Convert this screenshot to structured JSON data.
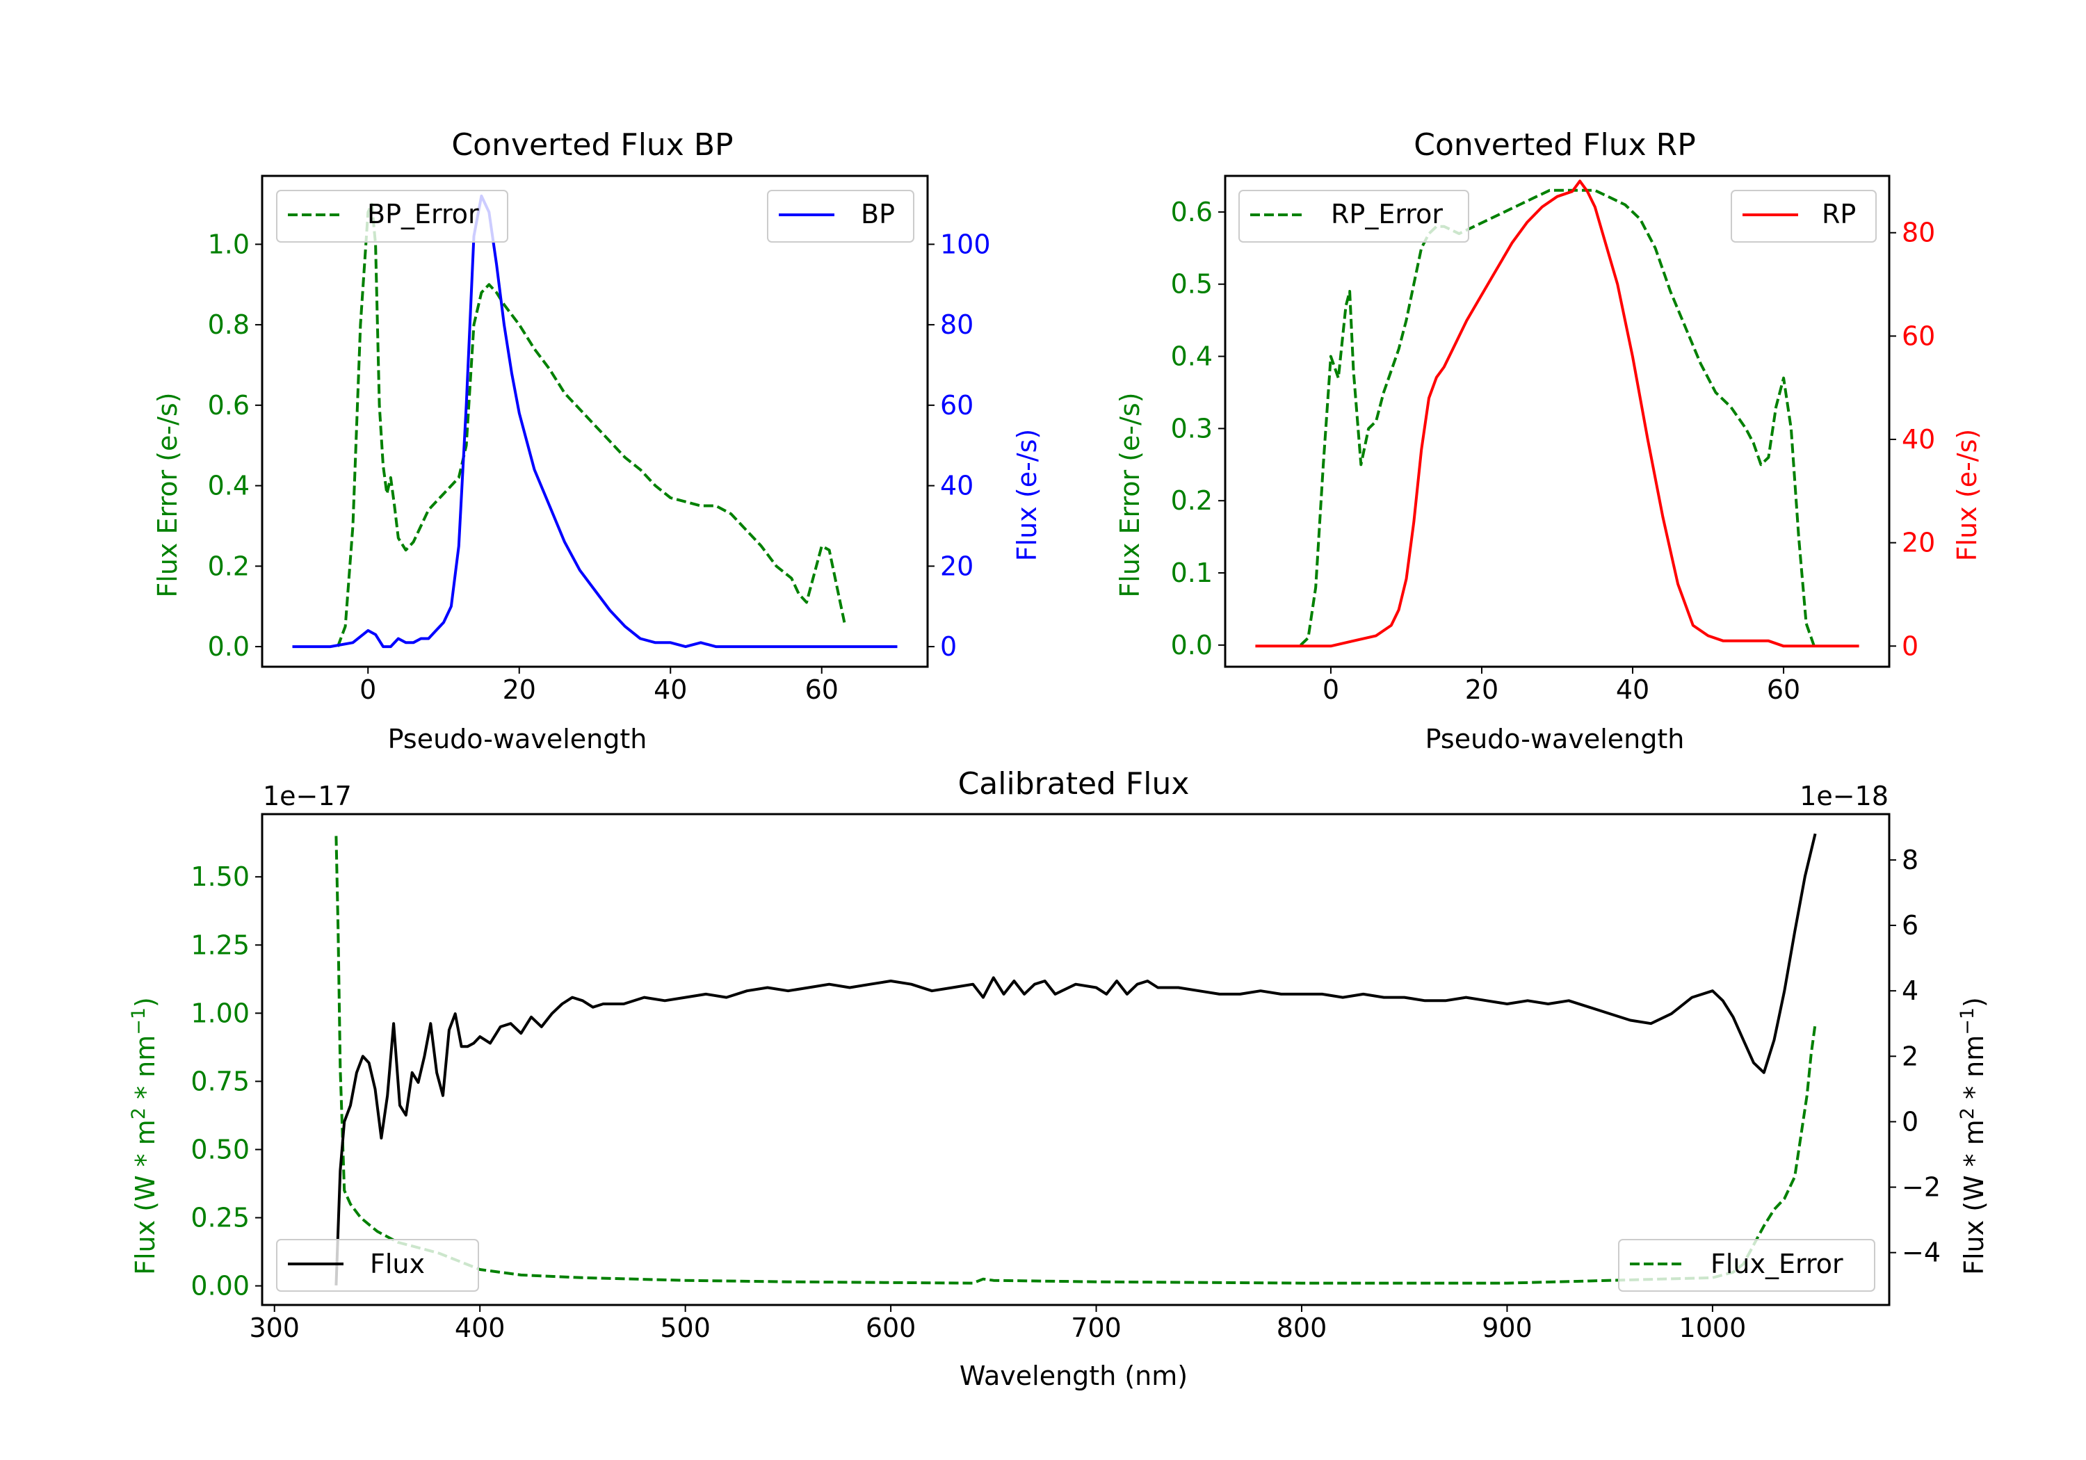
{
  "colors": {
    "green": "#008000",
    "blue": "#0000ff",
    "red": "#ff0000",
    "black": "#000000"
  },
  "chart_data": [
    {
      "type": "line",
      "title": "Converted Flux BP",
      "xlabel": "Pseudo-wavelength",
      "ylabel_left": "Flux Error (e-/s)",
      "ylabel_right": "Flux (e-/s)",
      "xlim": [
        -14,
        74
      ],
      "ylim_left": [
        -0.05,
        1.17
      ],
      "ylim_right": [
        -5,
        117
      ],
      "xticks": [
        0,
        20,
        40,
        60
      ],
      "yticks_left": [
        0.0,
        0.2,
        0.4,
        0.6,
        0.8,
        1.0
      ],
      "yticks_left_labels": [
        "0.0",
        "0.2",
        "0.4",
        "0.6",
        "0.8",
        "1.0"
      ],
      "yticks_right": [
        0,
        20,
        40,
        60,
        80,
        100
      ],
      "yticks_right_labels": [
        "0",
        "20",
        "40",
        "60",
        "80",
        "100"
      ],
      "legend_left": {
        "label": "BP_Error",
        "position": "upper left"
      },
      "legend_right": {
        "label": "BP",
        "position": "upper right"
      },
      "series": [
        {
          "name": "BP_Error",
          "axis": "left",
          "style": "dashed",
          "color": "#008000",
          "x": [
            -4,
            -3,
            -2,
            -1,
            0,
            0.5,
            1,
            1.5,
            2,
            2.5,
            3,
            3.5,
            4,
            5,
            6,
            7,
            8,
            10,
            12,
            13,
            14,
            15,
            16,
            17,
            18,
            20,
            22,
            24,
            26,
            28,
            30,
            32,
            34,
            36,
            38,
            40,
            42,
            44,
            46,
            48,
            50,
            52,
            54,
            56,
            57,
            58,
            59,
            60,
            61,
            62,
            63
          ],
          "y": [
            0.0,
            0.05,
            0.3,
            0.8,
            1.08,
            1.1,
            1.0,
            0.6,
            0.45,
            0.38,
            0.42,
            0.35,
            0.27,
            0.24,
            0.26,
            0.3,
            0.34,
            0.38,
            0.42,
            0.5,
            0.8,
            0.88,
            0.9,
            0.88,
            0.85,
            0.8,
            0.74,
            0.69,
            0.63,
            0.59,
            0.55,
            0.51,
            0.47,
            0.44,
            0.4,
            0.37,
            0.36,
            0.35,
            0.35,
            0.33,
            0.29,
            0.25,
            0.2,
            0.17,
            0.13,
            0.11,
            0.18,
            0.25,
            0.24,
            0.15,
            0.06
          ]
        },
        {
          "name": "BP",
          "axis": "right",
          "style": "solid",
          "color": "#0000ff",
          "x": [
            -10,
            -5,
            -2,
            0,
            1,
            2,
            3,
            4,
            5,
            6,
            7,
            8,
            9,
            10,
            11,
            12,
            13,
            14,
            15,
            16,
            17,
            18,
            19,
            20,
            22,
            24,
            26,
            28,
            30,
            32,
            34,
            36,
            38,
            40,
            42,
            44,
            46,
            48,
            50,
            55,
            60,
            65,
            70
          ],
          "y": [
            0,
            0,
            1,
            4,
            3,
            0,
            0,
            2,
            1,
            1,
            2,
            2,
            4,
            6,
            10,
            25,
            60,
            102,
            112,
            108,
            95,
            80,
            68,
            58,
            44,
            35,
            26,
            19,
            14,
            9,
            5,
            2,
            1,
            1,
            0,
            1,
            0,
            0,
            0,
            0,
            0,
            0,
            0
          ]
        }
      ]
    },
    {
      "type": "line",
      "title": "Converted Flux RP",
      "xlabel": "Pseudo-wavelength",
      "ylabel_left": "Flux Error (e-/s)",
      "ylabel_right": "Flux (e-/s)",
      "xlim": [
        -14,
        74
      ],
      "ylim_left": [
        -0.03,
        0.65
      ],
      "ylim_right": [
        -4,
        91
      ],
      "xticks": [
        0,
        20,
        40,
        60
      ],
      "yticks_left": [
        0.0,
        0.1,
        0.2,
        0.3,
        0.4,
        0.5,
        0.6
      ],
      "yticks_left_labels": [
        "0.0",
        "0.1",
        "0.2",
        "0.3",
        "0.4",
        "0.5",
        "0.6"
      ],
      "yticks_right": [
        0,
        20,
        40,
        60,
        80
      ],
      "yticks_right_labels": [
        "0",
        "20",
        "40",
        "60",
        "80"
      ],
      "legend_left": {
        "label": "RP_Error",
        "position": "upper left"
      },
      "legend_right": {
        "label": "RP",
        "position": "upper right"
      },
      "series": [
        {
          "name": "RP_Error",
          "axis": "left",
          "style": "dashed",
          "color": "#008000",
          "x": [
            -4,
            -3,
            -2,
            -1,
            0,
            1,
            2,
            2.5,
            3,
            4,
            5,
            6,
            7,
            8,
            9,
            10,
            11,
            12,
            13,
            14,
            15,
            17,
            19,
            21,
            23,
            25,
            27,
            29,
            31,
            33,
            35,
            37,
            39,
            41,
            43,
            45,
            47,
            49,
            51,
            53,
            55,
            56,
            57,
            58,
            59,
            60,
            61,
            62,
            63,
            64
          ],
          "y": [
            0.0,
            0.01,
            0.08,
            0.25,
            0.4,
            0.37,
            0.47,
            0.49,
            0.38,
            0.25,
            0.3,
            0.31,
            0.35,
            0.38,
            0.41,
            0.45,
            0.5,
            0.55,
            0.57,
            0.58,
            0.58,
            0.57,
            0.58,
            0.59,
            0.6,
            0.61,
            0.62,
            0.63,
            0.63,
            0.63,
            0.63,
            0.62,
            0.61,
            0.59,
            0.55,
            0.49,
            0.44,
            0.39,
            0.35,
            0.33,
            0.3,
            0.28,
            0.25,
            0.26,
            0.33,
            0.37,
            0.3,
            0.15,
            0.03,
            0.0
          ]
        },
        {
          "name": "RP",
          "axis": "right",
          "style": "solid",
          "color": "#ff0000",
          "x": [
            -10,
            -5,
            0,
            3,
            6,
            8,
            9,
            10,
            11,
            12,
            13,
            14,
            15,
            16,
            18,
            20,
            22,
            24,
            26,
            28,
            30,
            32,
            33,
            34,
            35,
            36,
            38,
            40,
            42,
            44,
            46,
            48,
            50,
            52,
            54,
            56,
            58,
            60,
            62,
            65,
            70
          ],
          "y": [
            0,
            0,
            0,
            1,
            2,
            4,
            7,
            13,
            24,
            38,
            48,
            52,
            54,
            57,
            63,
            68,
            73,
            78,
            82,
            85,
            87,
            88,
            90,
            88,
            85,
            80,
            70,
            56,
            40,
            25,
            12,
            4,
            2,
            1,
            1,
            1,
            1,
            0,
            0,
            0,
            0
          ]
        }
      ]
    },
    {
      "type": "line",
      "title": "Calibrated Flux",
      "xlabel": "Wavelength (nm)",
      "ylabel_left": "Flux (W * m",
      "ylabel_left_sup1": "2",
      "ylabel_left_mid": " * nm",
      "ylabel_left_sup2": "−1",
      "ylabel_left_end": ")",
      "ylabel_right": "Flux (W * m",
      "ylabel_right_sup1": "2",
      "ylabel_right_mid": " * nm",
      "ylabel_right_sup2": "−1",
      "ylabel_right_end": ")",
      "left_offset_label": "1e−17",
      "right_offset_label": "1e−18",
      "xlim": [
        294,
        1086
      ],
      "ylim_left": [
        -0.07,
        1.73
      ],
      "ylim_right": [
        -5.6,
        9.4
      ],
      "xticks": [
        300,
        400,
        500,
        600,
        700,
        800,
        900,
        1000
      ],
      "yticks_left": [
        0.0,
        0.25,
        0.5,
        0.75,
        1.0,
        1.25,
        1.5
      ],
      "yticks_left_labels": [
        "0.00",
        "0.25",
        "0.50",
        "0.75",
        "1.00",
        "1.25",
        "1.50"
      ],
      "yticks_right": [
        -4,
        -2,
        0,
        2,
        4,
        6,
        8
      ],
      "yticks_right_labels": [
        "−4",
        "−2",
        "0",
        "2",
        "4",
        "6",
        "8"
      ],
      "legend_left": {
        "label": "Flux",
        "position": "lower left"
      },
      "legend_right": {
        "label": "Flux_Error",
        "position": "lower right"
      },
      "series": [
        {
          "name": "Flux_Error",
          "axis": "left",
          "style": "dashed",
          "color": "#008000",
          "x": [
            330,
            331,
            332,
            334,
            337,
            342,
            350,
            360,
            370,
            380,
            390,
            400,
            420,
            450,
            500,
            550,
            600,
            640,
            645,
            650,
            700,
            800,
            900,
            1000,
            1010,
            1015,
            1020,
            1025,
            1030,
            1035,
            1040,
            1043,
            1046,
            1048,
            1050
          ],
          "y": [
            1.65,
            1.3,
            0.8,
            0.35,
            0.3,
            0.25,
            0.2,
            0.16,
            0.14,
            0.12,
            0.09,
            0.06,
            0.04,
            0.03,
            0.02,
            0.015,
            0.012,
            0.01,
            0.025,
            0.02,
            0.015,
            0.01,
            0.01,
            0.03,
            0.05,
            0.08,
            0.15,
            0.22,
            0.28,
            0.32,
            0.4,
            0.55,
            0.7,
            0.85,
            0.96
          ]
        },
        {
          "name": "Flux",
          "axis": "right",
          "style": "solid",
          "color": "#000000",
          "x": [
            330,
            332,
            334,
            337,
            340,
            343,
            346,
            349,
            352,
            355,
            358,
            361,
            364,
            367,
            370,
            373,
            376,
            379,
            382,
            385,
            388,
            391,
            394,
            397,
            400,
            405,
            410,
            415,
            420,
            425,
            430,
            435,
            440,
            445,
            450,
            455,
            460,
            470,
            480,
            490,
            500,
            510,
            520,
            530,
            540,
            550,
            560,
            570,
            580,
            590,
            600,
            610,
            620,
            630,
            640,
            645,
            650,
            655,
            660,
            665,
            670,
            675,
            680,
            690,
            700,
            705,
            710,
            715,
            720,
            725,
            730,
            740,
            750,
            760,
            770,
            780,
            790,
            800,
            810,
            820,
            830,
            840,
            850,
            860,
            870,
            880,
            890,
            900,
            910,
            920,
            930,
            940,
            950,
            960,
            970,
            980,
            990,
            1000,
            1005,
            1010,
            1015,
            1020,
            1025,
            1030,
            1035,
            1040,
            1045,
            1050
          ],
          "y": [
            -5,
            -1.5,
            0,
            0.5,
            1.5,
            2.0,
            1.8,
            1.0,
            -0.5,
            0.8,
            3.0,
            0.5,
            0.2,
            1.5,
            1.2,
            2.0,
            3.0,
            1.5,
            0.8,
            2.8,
            3.3,
            2.3,
            2.3,
            2.4,
            2.6,
            2.4,
            2.9,
            3.0,
            2.7,
            3.2,
            2.9,
            3.3,
            3.6,
            3.8,
            3.7,
            3.5,
            3.6,
            3.6,
            3.8,
            3.7,
            3.8,
            3.9,
            3.8,
            4.0,
            4.1,
            4.0,
            4.1,
            4.2,
            4.1,
            4.2,
            4.3,
            4.2,
            4.0,
            4.1,
            4.2,
            3.8,
            4.4,
            3.9,
            4.3,
            3.9,
            4.2,
            4.3,
            3.9,
            4.2,
            4.1,
            3.9,
            4.3,
            3.9,
            4.2,
            4.3,
            4.1,
            4.1,
            4.0,
            3.9,
            3.9,
            4.0,
            3.9,
            3.9,
            3.9,
            3.8,
            3.9,
            3.8,
            3.8,
            3.7,
            3.7,
            3.8,
            3.7,
            3.6,
            3.7,
            3.6,
            3.7,
            3.5,
            3.3,
            3.1,
            3.0,
            3.3,
            3.8,
            4.0,
            3.7,
            3.2,
            2.5,
            1.8,
            1.5,
            2.5,
            4.0,
            5.8,
            7.5,
            8.8
          ]
        }
      ]
    }
  ]
}
